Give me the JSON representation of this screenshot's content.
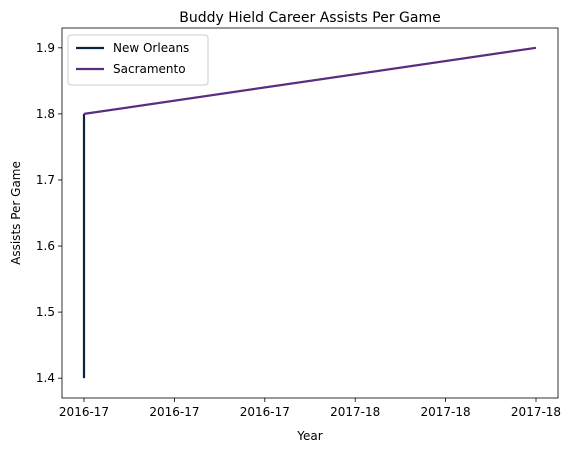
{
  "chart_data": {
    "type": "line",
    "title": "Buddy Hield Career Assists Per Game",
    "xlabel": "Year",
    "ylabel": "Assists Per Game",
    "x_tick_labels": [
      "2016-17",
      "2016-17",
      "2016-17",
      "2017-18",
      "2017-18",
      "2017-18"
    ],
    "x_range": [
      2016.0,
      2017.0
    ],
    "y_ticks": [
      "1.4",
      "1.5",
      "1.6",
      "1.7",
      "1.8",
      "1.9"
    ],
    "ylim": [
      1.37,
      1.93
    ],
    "grid": false,
    "legend_position": "upper-left",
    "series": [
      {
        "name": "New Orleans",
        "color": "#0c2340",
        "points": [
          {
            "x": 2016.0,
            "y": 1.4
          },
          {
            "x": 2016.0,
            "y": 1.8
          }
        ]
      },
      {
        "name": "Sacramento",
        "color": "#5a2d81",
        "points": [
          {
            "x": 2016.0,
            "y": 1.8
          },
          {
            "x": 2017.0,
            "y": 1.9
          }
        ]
      }
    ]
  }
}
